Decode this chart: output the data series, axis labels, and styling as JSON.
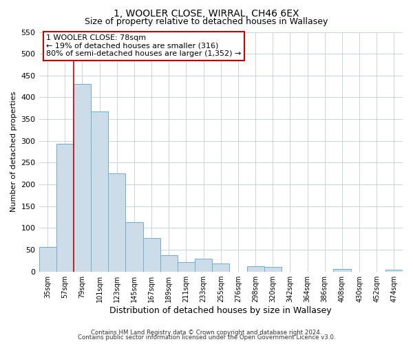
{
  "title": "1, WOOLER CLOSE, WIRRAL, CH46 6EX",
  "subtitle": "Size of property relative to detached houses in Wallasey",
  "xlabel": "Distribution of detached houses by size in Wallasey",
  "ylabel": "Number of detached properties",
  "bar_color": "#ccdce8",
  "bar_edge_color": "#6baed6",
  "marker_line_color": "#cc0000",
  "background_color": "#ffffff",
  "plot_bg_color": "#ffffff",
  "grid_color": "#c8d4dc",
  "categories": [
    "35sqm",
    "57sqm",
    "79sqm",
    "101sqm",
    "123sqm",
    "145sqm",
    "167sqm",
    "189sqm",
    "211sqm",
    "233sqm",
    "255sqm",
    "276sqm",
    "298sqm",
    "320sqm",
    "342sqm",
    "364sqm",
    "386sqm",
    "408sqm",
    "430sqm",
    "452sqm",
    "474sqm"
  ],
  "values": [
    57,
    293,
    430,
    368,
    226,
    113,
    76,
    38,
    22,
    30,
    18,
    0,
    12,
    10,
    0,
    0,
    0,
    5,
    0,
    0,
    4
  ],
  "ylim": [
    0,
    550
  ],
  "yticks": [
    0,
    50,
    100,
    150,
    200,
    250,
    300,
    350,
    400,
    450,
    500,
    550
  ],
  "marker_bar_index": 2,
  "annotation_title": "1 WOOLER CLOSE: 78sqm",
  "annotation_line1": "← 19% of detached houses are smaller (316)",
  "annotation_line2": "80% of semi-detached houses are larger (1,352) →",
  "footer_line1": "Contains HM Land Registry data © Crown copyright and database right 2024.",
  "footer_line2": "Contains public sector information licensed under the Open Government Licence v3.0."
}
